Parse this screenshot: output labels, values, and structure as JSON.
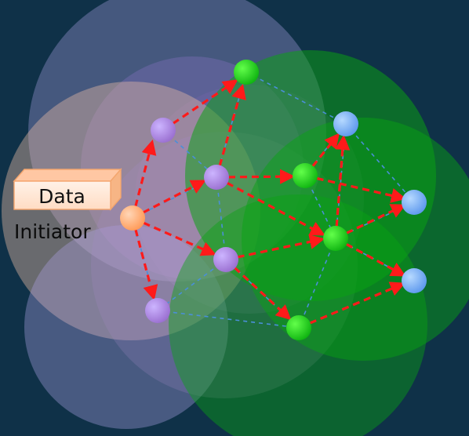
{
  "label": {
    "line1": "Data",
    "line2": "Initiator"
  },
  "colors": {
    "background": "#0f3148",
    "arrow": "#ff1a1a",
    "mesh_link": "#4a8fd8",
    "initiator": "#ffa368",
    "purple_node": "#a37ad6",
    "green_node": "#16c51d",
    "blue_node": "#79aef5",
    "coverage_peach": "#e8bba5",
    "coverage_lavender": "#b1a4e8",
    "coverage_purple": "#8d74c9",
    "coverage_green": "#09a312",
    "label_box_front": "#ffe8d6",
    "label_box_edge": "#f4a66e"
  },
  "legend": {
    "node_groups": [
      "initiator",
      "purple",
      "green",
      "blue"
    ]
  }
}
